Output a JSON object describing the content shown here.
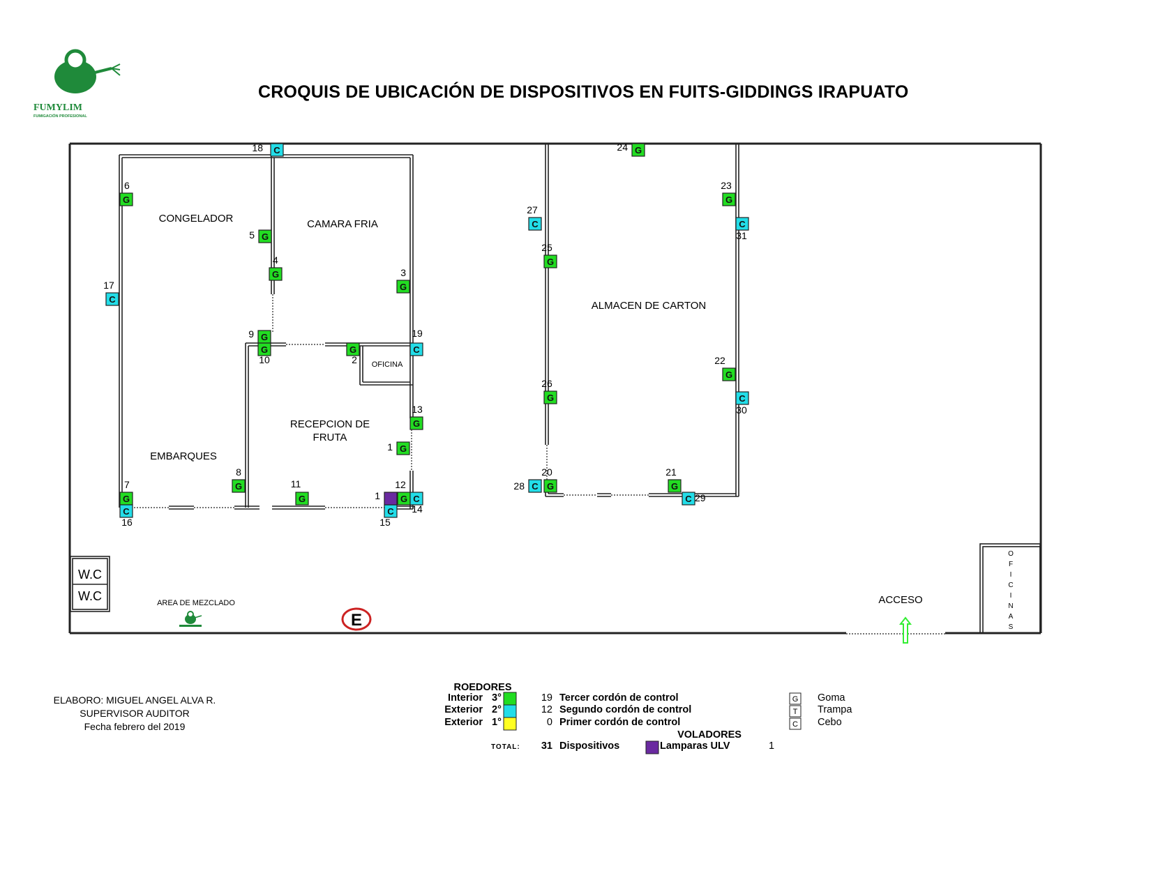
{
  "title": "CROQUIS DE UBICACIÓN DE DISPOSITIVOS EN FUITS-GIDDINGS IRAPUATO",
  "logo": {
    "name": "FUMYLIM",
    "tagline": "FUMIGACIÓN PROFESIONAL"
  },
  "colors": {
    "interior": "#22dd22",
    "exterior2": "#22dde8",
    "exterior1": "#ffff22",
    "lamp": "#6a2aa0",
    "wall": "#222222",
    "exit": "#cc2222",
    "access": "#33ee33",
    "logo": "#1f8a3a"
  },
  "rooms": {
    "congelador": "CONGELADOR",
    "camara": "CAMARA FRIA",
    "oficina": "OFICINA",
    "recepcion1": "RECEPCION DE",
    "recepcion2": "FRUTA",
    "embarques": "EMBARQUES",
    "almacen": "ALMACEN DE CARTON",
    "wc1": "W.C",
    "wc2": "W.C",
    "mezclado": "AREA DE MEZCLADO",
    "acceso": "ACCESO",
    "oficinas": [
      "O",
      "F",
      "I",
      "C",
      "I",
      "N",
      "A",
      "S"
    ],
    "exit": "E"
  },
  "devices": [
    {
      "n": "18",
      "t": "C"
    },
    {
      "n": "6",
      "t": "G"
    },
    {
      "n": "5",
      "t": "G"
    },
    {
      "n": "4",
      "t": "G"
    },
    {
      "n": "3",
      "t": "G"
    },
    {
      "n": "17",
      "t": "C"
    },
    {
      "n": "9",
      "t": "G"
    },
    {
      "n": "10",
      "t": "G"
    },
    {
      "n": "2",
      "t": "G"
    },
    {
      "n": "19",
      "t": "C"
    },
    {
      "n": "13",
      "t": "G"
    },
    {
      "n": "1",
      "t": "G"
    },
    {
      "n": "8",
      "t": "G"
    },
    {
      "n": "11",
      "t": "G"
    },
    {
      "n": "12",
      "t": "G"
    },
    {
      "n": "14",
      "t": "C"
    },
    {
      "n": "15",
      "t": "C"
    },
    {
      "n": "1",
      "t": "L"
    },
    {
      "n": "7",
      "t": "G"
    },
    {
      "n": "16",
      "t": "C"
    },
    {
      "n": "24",
      "t": "G"
    },
    {
      "n": "23",
      "t": "G"
    },
    {
      "n": "31",
      "t": "C"
    },
    {
      "n": "27",
      "t": "C"
    },
    {
      "n": "25",
      "t": "G"
    },
    {
      "n": "22",
      "t": "G"
    },
    {
      "n": "30",
      "t": "C"
    },
    {
      "n": "26",
      "t": "G"
    },
    {
      "n": "20",
      "t": "G"
    },
    {
      "n": "28",
      "t": "C"
    },
    {
      "n": "21",
      "t": "G"
    },
    {
      "n": "29",
      "t": "C"
    }
  ],
  "footer": {
    "elaboro": "ELABORO: MIGUEL ANGEL ALVA R.",
    "cargo": "SUPERVISOR AUDITOR",
    "fecha": "Fecha  febrero del 2019"
  },
  "legend": {
    "roedores": "ROEDORES",
    "rows": [
      {
        "zone": "Interior",
        "level": "3°",
        "count": "19",
        "label": "Tercer cordón de control"
      },
      {
        "zone": "Exterior",
        "level": "2°",
        "count": "12",
        "label": "Segundo cordón de control"
      },
      {
        "zone": "Exterior",
        "level": "1°",
        "count": "0",
        "label": "Primer cordón de control"
      }
    ],
    "total_label": "TOTAL:",
    "total_count": "31",
    "total_text": "Dispositivos",
    "voladores": "VOLADORES",
    "lamp_label": "Lamparas ULV",
    "lamp_count": "1",
    "keys": [
      {
        "code": "G",
        "label": "Goma"
      },
      {
        "code": "T",
        "label": "Trampa"
      },
      {
        "code": "C",
        "label": "Cebo"
      }
    ]
  }
}
